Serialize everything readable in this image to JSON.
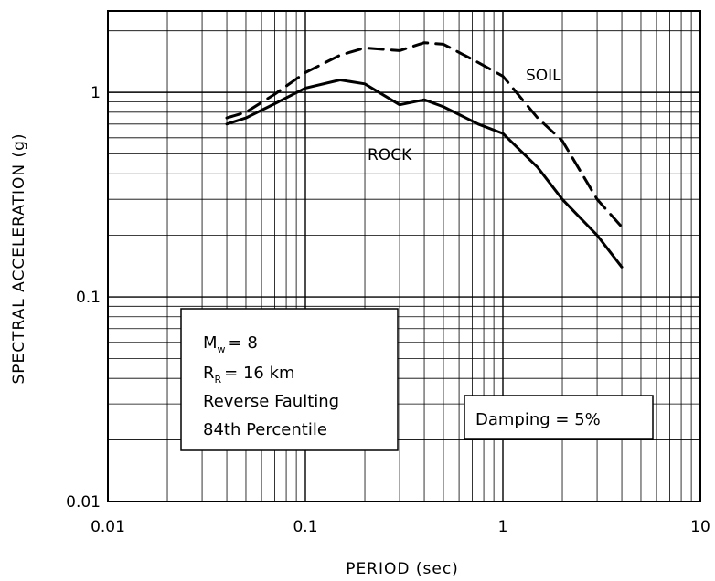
{
  "chart_data": {
    "type": "line",
    "xscale": "log",
    "yscale": "log",
    "xlim": [
      0.01,
      10
    ],
    "ylim": [
      0.01,
      2.5
    ],
    "grid": true,
    "xlabel": "PERIOD (sec)",
    "ylabel": "SPECTRAL ACCELERATION (g)",
    "xtick_labels": [
      "0.01",
      "0.1",
      "1",
      "10"
    ],
    "ytick_labels": [
      "0.01",
      "0.1",
      "1"
    ],
    "series": [
      {
        "name": "SOIL",
        "style": "dashed",
        "x": [
          0.04,
          0.05,
          0.07,
          0.1,
          0.15,
          0.2,
          0.3,
          0.4,
          0.5,
          0.75,
          1.0,
          1.5,
          2.0,
          3.0,
          4.0
        ],
        "y": [
          0.75,
          0.8,
          0.98,
          1.25,
          1.52,
          1.65,
          1.6,
          1.75,
          1.72,
          1.4,
          1.2,
          0.75,
          0.58,
          0.3,
          0.22
        ]
      },
      {
        "name": "ROCK",
        "style": "solid",
        "x": [
          0.04,
          0.05,
          0.07,
          0.1,
          0.15,
          0.2,
          0.3,
          0.4,
          0.5,
          0.75,
          1.0,
          1.5,
          2.0,
          3.0,
          4.0
        ],
        "y": [
          0.7,
          0.75,
          0.88,
          1.05,
          1.15,
          1.1,
          0.87,
          0.92,
          0.85,
          0.7,
          0.63,
          0.43,
          0.3,
          0.2,
          0.14
        ]
      }
    ],
    "annotations": {
      "params": {
        "mw_letter": "M",
        "mw_sub": "w",
        "mw_value": "= 8",
        "rr_letter": "R",
        "rr_sub": "R",
        "rr_value": "= 16 km",
        "line3": "Reverse Faulting",
        "line4": "84th Percentile"
      },
      "damping": "Damping = 5%"
    }
  }
}
